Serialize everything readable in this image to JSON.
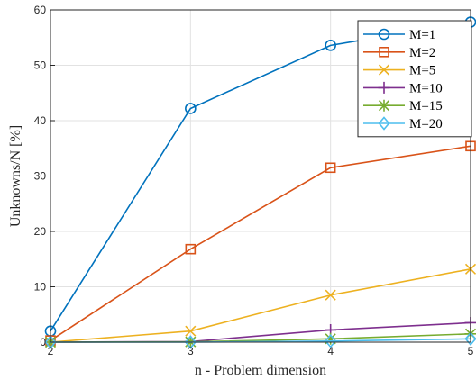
{
  "chart_data": {
    "type": "line",
    "title": "",
    "xlabel": "n - Problem dimension",
    "ylabel": "Unknowns/N [%]",
    "x": [
      2,
      3,
      4,
      5
    ],
    "xlim": [
      2,
      5
    ],
    "ylim": [
      0,
      60
    ],
    "xticks": [
      2,
      3,
      4,
      5
    ],
    "yticks": [
      0,
      10,
      20,
      30,
      40,
      50,
      60
    ],
    "grid": true,
    "legend_position": "top-right",
    "series": [
      {
        "name": "M=1",
        "color": "#0072BD",
        "marker": "circle",
        "values": [
          2.0,
          42.2,
          53.6,
          57.8
        ]
      },
      {
        "name": "M=2",
        "color": "#D95319",
        "marker": "square",
        "values": [
          0.3,
          16.8,
          31.5,
          35.4
        ]
      },
      {
        "name": "M=5",
        "color": "#EDB120",
        "marker": "x",
        "values": [
          0.0,
          2.0,
          8.5,
          13.2
        ]
      },
      {
        "name": "M=10",
        "color": "#7E2F8E",
        "marker": "plus",
        "values": [
          0.0,
          0.1,
          2.2,
          3.5
        ]
      },
      {
        "name": "M=15",
        "color": "#77AC30",
        "marker": "star",
        "values": [
          0.0,
          0.05,
          0.6,
          1.5
        ]
      },
      {
        "name": "M=20",
        "color": "#4DBEEE",
        "marker": "diamond",
        "values": [
          0.0,
          0.0,
          0.2,
          0.6
        ]
      }
    ]
  }
}
